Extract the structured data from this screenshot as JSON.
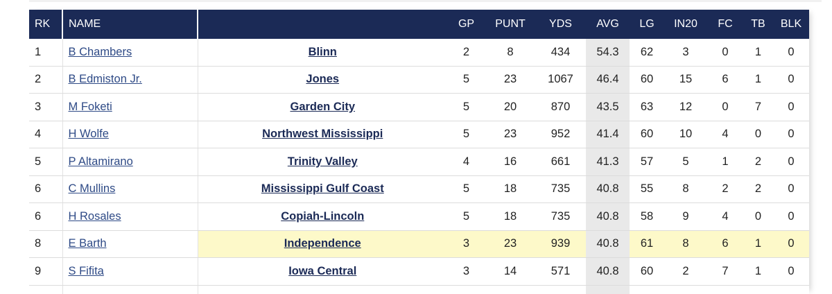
{
  "table": {
    "headers": [
      "RK",
      "NAME",
      "",
      "GP",
      "PUNT",
      "YDS",
      "AVG",
      "LG",
      "IN20",
      "FC",
      "TB",
      "BLK"
    ],
    "rows": [
      [
        "1",
        "B Chambers",
        "Blinn",
        "2",
        "8",
        "434",
        "54.3",
        "62",
        "3",
        "0",
        "1",
        "0"
      ],
      [
        "2",
        "B Edmiston Jr.",
        "Jones",
        "5",
        "23",
        "1067",
        "46.4",
        "60",
        "15",
        "6",
        "1",
        "0"
      ],
      [
        "3",
        "M Foketi",
        "Garden City",
        "5",
        "20",
        "870",
        "43.5",
        "63",
        "12",
        "0",
        "7",
        "0"
      ],
      [
        "4",
        "H Wolfe",
        "Northwest Mississippi",
        "5",
        "23",
        "952",
        "41.4",
        "60",
        "10",
        "4",
        "0",
        "0"
      ],
      [
        "5",
        "P Altamirano",
        "Trinity Valley",
        "4",
        "16",
        "661",
        "41.3",
        "57",
        "5",
        "1",
        "2",
        "0"
      ],
      [
        "6",
        "C Mullins",
        "Mississippi Gulf Coast",
        "5",
        "18",
        "735",
        "40.8",
        "55",
        "8",
        "2",
        "2",
        "0"
      ],
      [
        "6",
        "H Rosales",
        "Copiah-Lincoln",
        "5",
        "18",
        "735",
        "40.8",
        "58",
        "9",
        "4",
        "0",
        "0"
      ],
      [
        "8",
        "E Barth",
        "Independence",
        "3",
        "23",
        "939",
        "40.8",
        "61",
        "8",
        "6",
        "1",
        "0"
      ],
      [
        "9",
        "S Fifita",
        "Iowa Central",
        "3",
        "14",
        "571",
        "40.8",
        "60",
        "2",
        "7",
        "1",
        "0"
      ]
    ]
  }
}
